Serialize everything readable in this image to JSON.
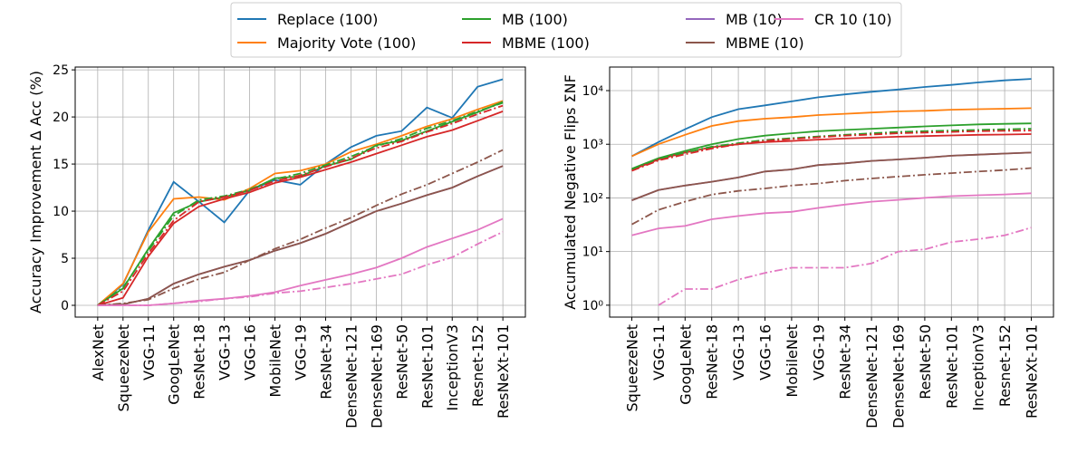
{
  "chart_data": [
    {
      "type": "line",
      "y_label": "Accuracy Improvement Δ Acc (%)",
      "categories": [
        "AlexNet",
        "SqueezeNet",
        "VGG-11",
        "GoogLeNet",
        "ResNet-18",
        "VGG-13",
        "VGG-16",
        "MobileNet",
        "VGG-19",
        "ResNet-34",
        "DenseNet-121",
        "DenseNet-169",
        "ResNet-50",
        "ResNet-101",
        "InceptionV3",
        "Resnet-152",
        "ResNeXt-101"
      ],
      "ylim": [
        -1.25,
        25.3
      ],
      "yticks": [
        0,
        5,
        10,
        15,
        20,
        25
      ],
      "grid": true,
      "series": [
        {
          "name": "Replace (100)",
          "color": "#1f77b4",
          "values": [
            0,
            2.2,
            8,
            13.1,
            11,
            8.8,
            12.2,
            13.3,
            12.8,
            15,
            16.8,
            18,
            18.5,
            21,
            19.9,
            23.2,
            24
          ]
        },
        {
          "name": "Majority Vote (100)",
          "color": "#ff7f0e",
          "values": [
            0,
            2.3,
            7.8,
            11.3,
            11.5,
            11.2,
            12.4,
            14,
            14.3,
            15,
            16.3,
            17.1,
            18,
            19,
            19.8,
            20.8,
            21.7
          ]
        },
        {
          "name": "MB (100)",
          "color": "#2ca02c",
          "values": [
            0,
            1.8,
            6,
            9.8,
            11,
            11.5,
            12.2,
            13.5,
            13.7,
            14.8,
            15.5,
            17,
            17.5,
            18.5,
            19.5,
            20.5,
            21.6
          ]
        },
        {
          "name": "MBME (100)",
          "color": "#d62728",
          "values": [
            0,
            0.8,
            5.2,
            8.7,
            10.5,
            11.3,
            12,
            13,
            13.6,
            14.4,
            15.2,
            16.1,
            17,
            17.9,
            18.6,
            19.6,
            20.6
          ]
        },
        {
          "name": "MB (10)",
          "color": "#9467bd",
          "values": [
            0,
            0.1,
            0.7,
            2.3,
            3.3,
            4.1,
            4.8,
            5.8,
            6.6,
            7.6,
            8.8,
            10,
            10.8,
            11.7,
            12.5,
            13.7,
            14.8
          ]
        },
        {
          "name": "MBME (10)",
          "color": "#8c564b",
          "values": [
            0,
            0.1,
            0.7,
            2.3,
            3.3,
            4.1,
            4.8,
            5.8,
            6.6,
            7.6,
            8.8,
            10,
            10.8,
            11.7,
            12.5,
            13.7,
            14.8
          ]
        },
        {
          "name": "CR 10 (10)",
          "color": "#e377c2",
          "values": [
            0,
            0,
            0,
            0.2,
            0.5,
            0.7,
            1,
            1.4,
            2.1,
            2.7,
            3.3,
            4,
            5,
            6.2,
            7.1,
            8,
            9.2
          ]
        },
        {
          "color": "#2ca02c",
          "dash": "dashdot",
          "values": [
            0,
            1.9,
            5.8,
            9.5,
            11.2,
            11.6,
            12.3,
            13.4,
            14,
            14.9,
            15.8,
            16.9,
            17.7,
            18.8,
            19.6,
            20.6,
            21.5
          ]
        },
        {
          "color": "#d62728",
          "dash": "dashdot",
          "values": [
            0,
            1.5,
            5.5,
            9,
            11,
            11.5,
            12.2,
            13.2,
            13.8,
            14.7,
            15.6,
            16.7,
            17.4,
            18.4,
            19.3,
            20.3,
            21.2
          ]
        },
        {
          "color": "#8c564b",
          "dash": "dashdot",
          "values": [
            0,
            0.2,
            0.6,
            1.8,
            2.8,
            3.5,
            4.8,
            6,
            7,
            8.2,
            9.3,
            10.6,
            11.8,
            12.8,
            14,
            15.2,
            16.5
          ]
        },
        {
          "color": "#e377c2",
          "dash": "dashdot",
          "values": [
            0,
            0,
            0,
            0.2,
            0.4,
            0.7,
            0.9,
            1.3,
            1.5,
            1.9,
            2.3,
            2.8,
            3.3,
            4.3,
            5.1,
            6.5,
            7.8
          ]
        }
      ]
    },
    {
      "type": "line",
      "y_label": "Accumulated Negative Flips ΣNF",
      "categories": [
        "SqueezeNet",
        "VGG-11",
        "GoogLeNet",
        "ResNet-18",
        "VGG-13",
        "VGG-16",
        "MobileNet",
        "VGG-19",
        "ResNet-34",
        "DenseNet-121",
        "DenseNet-169",
        "ResNet-50",
        "ResNet-101",
        "InceptionV3",
        "Resnet-152",
        "ResNeXt-101"
      ],
      "log_scale": true,
      "ylim": [
        0.6,
        27500
      ],
      "yticks": [
        {
          "value": 1,
          "label": "10⁰"
        },
        {
          "value": 10,
          "label": "10¹"
        },
        {
          "value": 100,
          "label": "10²"
        },
        {
          "value": 1000,
          "label": "10³"
        },
        {
          "value": 10000,
          "label": "10⁴"
        }
      ],
      "grid": true,
      "series": [
        {
          "color": "#1f77b4",
          "values": [
            600,
            1100,
            1900,
            3200,
            4500,
            5300,
            6300,
            7500,
            8500,
            9500,
            10500,
            11700,
            12800,
            14200,
            15500,
            16500
          ]
        },
        {
          "color": "#ff7f0e",
          "values": [
            600,
            1000,
            1500,
            2200,
            2700,
            3000,
            3200,
            3500,
            3700,
            3900,
            4100,
            4200,
            4400,
            4500,
            4600,
            4700
          ]
        },
        {
          "color": "#2ca02c",
          "values": [
            350,
            550,
            750,
            1000,
            1250,
            1450,
            1600,
            1750,
            1850,
            1950,
            2050,
            2150,
            2250,
            2350,
            2400,
            2450
          ]
        },
        {
          "color": "#d62728",
          "values": [
            330,
            520,
            700,
            880,
            1000,
            1100,
            1150,
            1220,
            1280,
            1330,
            1380,
            1420,
            1460,
            1500,
            1520,
            1550
          ]
        },
        {
          "color": "#9467bd",
          "values": [
            90,
            140,
            170,
            200,
            240,
            310,
            340,
            410,
            440,
            490,
            520,
            560,
            610,
            640,
            670,
            700
          ]
        },
        {
          "color": "#8c564b",
          "values": [
            90,
            140,
            170,
            200,
            240,
            310,
            340,
            410,
            440,
            490,
            520,
            560,
            610,
            640,
            670,
            700
          ]
        },
        {
          "color": "#e377c2",
          "values": [
            20,
            27,
            30,
            40,
            46,
            52,
            55,
            65,
            75,
            85,
            92,
            100,
            108,
            112,
            116,
            122
          ]
        },
        {
          "color": "#2ca02c",
          "dash": "dashdot",
          "values": [
            340,
            540,
            700,
            900,
            1050,
            1200,
            1300,
            1400,
            1500,
            1600,
            1700,
            1750,
            1800,
            1850,
            1900,
            1950
          ]
        },
        {
          "color": "#d62728",
          "dash": "dashdot",
          "values": [
            320,
            500,
            650,
            830,
            1000,
            1150,
            1250,
            1350,
            1450,
            1520,
            1600,
            1650,
            1700,
            1750,
            1780,
            1800
          ]
        },
        {
          "color": "#8c564b",
          "dash": "dashdot",
          "values": [
            32,
            60,
            85,
            115,
            135,
            150,
            170,
            185,
            210,
            230,
            250,
            270,
            290,
            310,
            330,
            360
          ]
        },
        {
          "color": "#e377c2",
          "dash": "dashdot",
          "values": [
            null,
            1,
            2,
            2,
            3,
            4,
            5,
            5,
            5,
            6,
            10,
            11,
            15,
            17,
            20,
            28
          ]
        }
      ]
    }
  ]
}
